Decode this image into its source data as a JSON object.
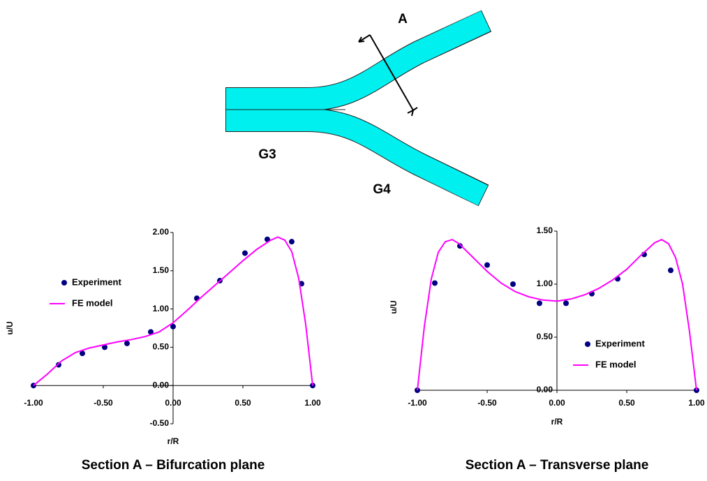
{
  "diagram": {
    "labels": [
      "A",
      "G3",
      "G4"
    ]
  },
  "chart_data": [
    {
      "type": "line",
      "title": "Section A – Bifurcation plane",
      "x_label": "r/R",
      "y_label": "u/U",
      "xlim": [
        -1,
        1
      ],
      "ylim": [
        -0.5,
        2
      ],
      "xticks": [
        {
          "value": -1,
          "label": "-1.00"
        },
        {
          "value": -0.5,
          "label": "-0.50"
        },
        {
          "value": 0,
          "label": "0.00"
        },
        {
          "value": 0.5,
          "label": "0.50"
        },
        {
          "value": 1,
          "label": "1.00"
        }
      ],
      "yticks": [
        {
          "value": -0.5,
          "label": "-0.50"
        },
        {
          "value": 0,
          "label": "0.00"
        },
        {
          "value": 0.5,
          "label": "0.50"
        },
        {
          "value": 1,
          "label": "1.00"
        },
        {
          "value": 1.5,
          "label": "1.50"
        },
        {
          "value": 2,
          "label": "2.00"
        }
      ],
      "legend": "left",
      "series": [
        {
          "name": "Experiment",
          "color": "#000080",
          "mode": "markers",
          "x": [
            -1,
            -0.82,
            -0.65,
            -0.49,
            -0.33,
            -0.16,
            0,
            0.17,
            0.335,
            0.515,
            0.675,
            0.85,
            0.92,
            1
          ],
          "values": [
            0,
            0.27,
            0.42,
            0.5,
            0.55,
            0.7,
            0.77,
            1.14,
            1.37,
            1.73,
            1.91,
            1.88,
            1.33,
            0
          ]
        },
        {
          "name": "FE model",
          "color": "#ff00ff",
          "mode": "line",
          "x": [
            -1,
            -0.9,
            -0.8,
            -0.7,
            -0.6,
            -0.5,
            -0.4,
            -0.3,
            -0.2,
            -0.1,
            0,
            0.1,
            0.2,
            0.3,
            0.4,
            0.5,
            0.6,
            0.7,
            0.75,
            0.8,
            0.85,
            0.9,
            0.95,
            1
          ],
          "values": [
            0,
            0.15,
            0.32,
            0.43,
            0.49,
            0.53,
            0.57,
            0.6,
            0.64,
            0.7,
            0.82,
            0.98,
            1.15,
            1.31,
            1.47,
            1.63,
            1.78,
            1.9,
            1.94,
            1.9,
            1.75,
            1.4,
            0.8,
            0
          ]
        }
      ]
    },
    {
      "type": "line",
      "title": "Section A – Transverse plane",
      "x_label": "r/R",
      "y_label": "u/U",
      "xlim": [
        -1,
        1
      ],
      "ylim": [
        0,
        1.5
      ],
      "xticks": [
        {
          "value": -1,
          "label": "-1.00"
        },
        {
          "value": -0.5,
          "label": "-0.50"
        },
        {
          "value": 0,
          "label": "0.00"
        },
        {
          "value": 0.5,
          "label": "0.50"
        },
        {
          "value": 1,
          "label": "1.00"
        }
      ],
      "yticks": [
        {
          "value": 0,
          "label": "0.00"
        },
        {
          "value": 0.5,
          "label": "0.50"
        },
        {
          "value": 1,
          "label": "1.00"
        },
        {
          "value": 1.5,
          "label": "1.50"
        }
      ],
      "legend": "lower right",
      "series": [
        {
          "name": "Experiment",
          "color": "#000080",
          "mode": "markers",
          "x": [
            -1,
            -0.875,
            -0.695,
            -0.5,
            -0.315,
            -0.125,
            0.065,
            0.25,
            0.435,
            0.625,
            0.815,
            1
          ],
          "values": [
            0,
            1.01,
            1.36,
            1.18,
            1.0,
            0.82,
            0.82,
            0.91,
            1.05,
            1.28,
            1.13,
            0
          ]
        },
        {
          "name": "FE model",
          "color": "#ff00ff",
          "mode": "line",
          "x": [
            -1,
            -0.95,
            -0.9,
            -0.85,
            -0.8,
            -0.75,
            -0.7,
            -0.6,
            -0.5,
            -0.4,
            -0.3,
            -0.2,
            -0.1,
            0,
            0.1,
            0.2,
            0.3,
            0.4,
            0.5,
            0.6,
            0.7,
            0.75,
            0.8,
            0.85,
            0.9,
            0.95,
            1
          ],
          "values": [
            0,
            0.6,
            1.05,
            1.3,
            1.4,
            1.42,
            1.38,
            1.25,
            1.12,
            1.01,
            0.93,
            0.88,
            0.85,
            0.84,
            0.86,
            0.9,
            0.96,
            1.04,
            1.14,
            1.27,
            1.39,
            1.42,
            1.38,
            1.25,
            1.0,
            0.55,
            0
          ]
        }
      ]
    }
  ]
}
